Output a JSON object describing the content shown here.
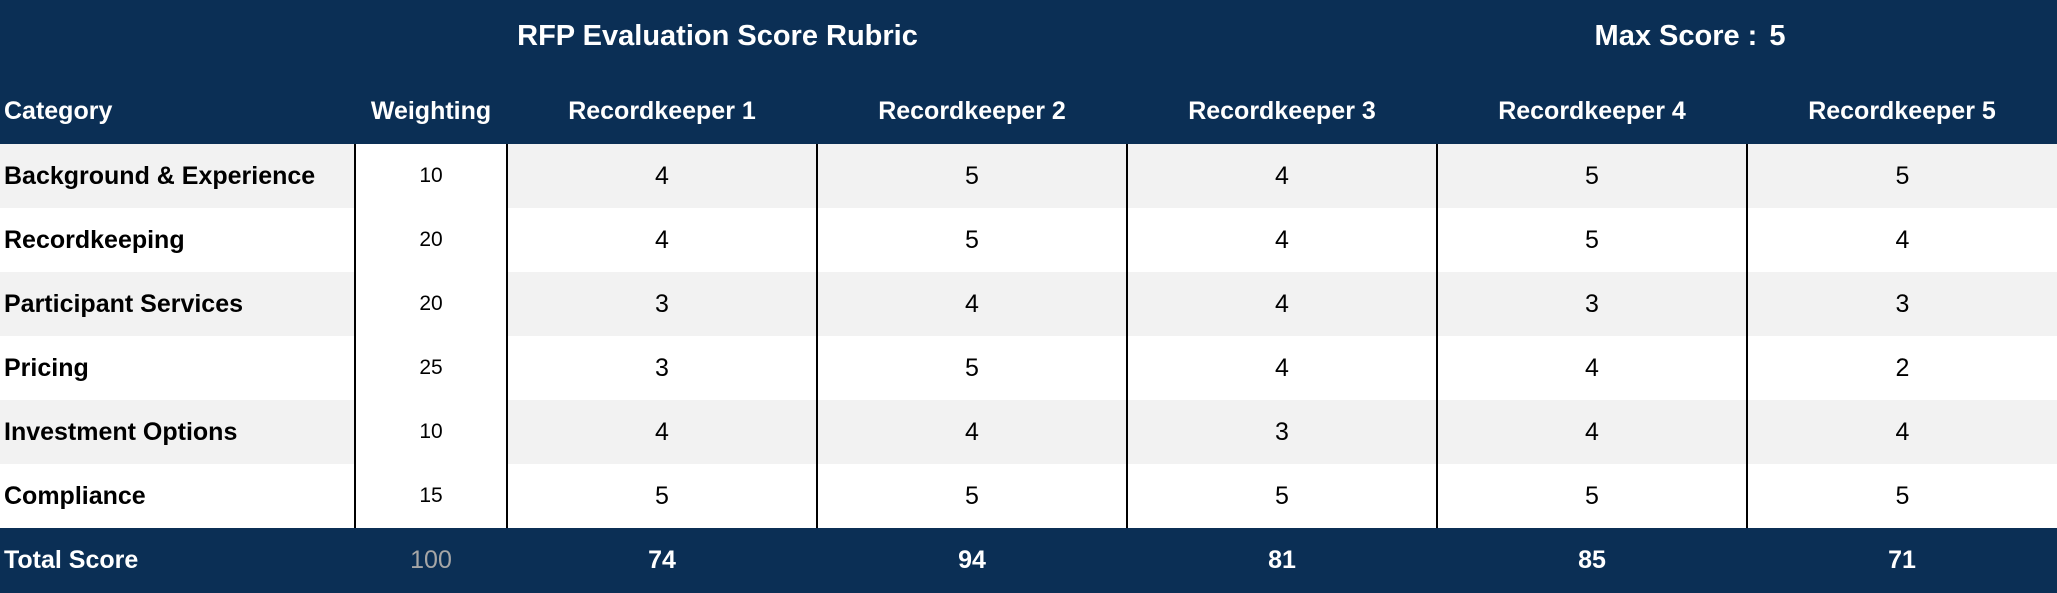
{
  "title": "RFP Evaluation Score Rubric",
  "max_score_label": "Max Score :",
  "max_score_value": "5",
  "columns": {
    "category": "Category",
    "weighting": "Weighting",
    "recordkeepers": [
      "Recordkeeper 1",
      "Recordkeeper 2",
      "Recordkeeper 3",
      "Recordkeeper 4",
      "Recordkeeper 5"
    ]
  },
  "rows": [
    {
      "category": "Background & Experience",
      "weighting": "10",
      "scores": [
        "4",
        "5",
        "4",
        "5",
        "5"
      ]
    },
    {
      "category": "Recordkeeping",
      "weighting": "20",
      "scores": [
        "4",
        "5",
        "4",
        "5",
        "4"
      ]
    },
    {
      "category": "Participant Services",
      "weighting": "20",
      "scores": [
        "3",
        "4",
        "4",
        "3",
        "3"
      ]
    },
    {
      "category": "Pricing",
      "weighting": "25",
      "scores": [
        "3",
        "5",
        "4",
        "4",
        "2"
      ]
    },
    {
      "category": "Investment Options",
      "weighting": "10",
      "scores": [
        "4",
        "4",
        "3",
        "4",
        "4"
      ]
    },
    {
      "category": "Compliance",
      "weighting": "15",
      "scores": [
        "5",
        "5",
        "5",
        "5",
        "5"
      ]
    }
  ],
  "total": {
    "label": "Total Score",
    "weighting": "100",
    "scores": [
      "74",
      "94",
      "81",
      "85",
      "71"
    ]
  },
  "colors": {
    "header_bg": "#0b2f55",
    "header_text": "#ffffff",
    "band_row": "#f2f2f2",
    "total_weight_text": "#a6a6a6"
  }
}
